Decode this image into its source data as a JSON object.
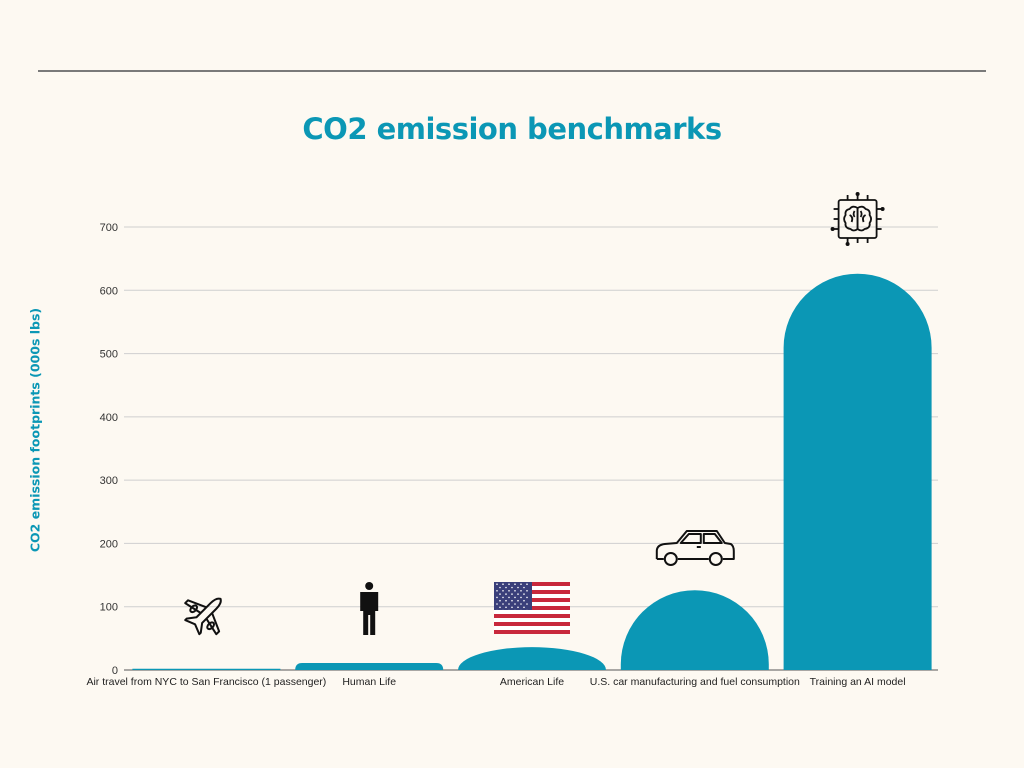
{
  "chart_data": {
    "type": "bar",
    "title": "CO2 emission benchmarks",
    "xlabel": "",
    "ylabel": "CO2 emission footprints (000s lbs)",
    "ylim": [
      0,
      700
    ],
    "yticks": [
      0,
      100,
      200,
      300,
      400,
      500,
      600,
      700
    ],
    "grid": true,
    "bar_color": "#0b97b5",
    "categories": [
      "Air travel from NYC to San Francisco (1 passenger)",
      "Human Life",
      "American Life",
      "U.S. car manufacturing and fuel consumption",
      "Training an AI model"
    ],
    "values": [
      1.984,
      11.023,
      36.156,
      126.0,
      626.155
    ],
    "icons": [
      "airplane-icon",
      "person-icon",
      "us-flag-icon",
      "car-icon",
      "ai-chip-brain-icon"
    ]
  }
}
